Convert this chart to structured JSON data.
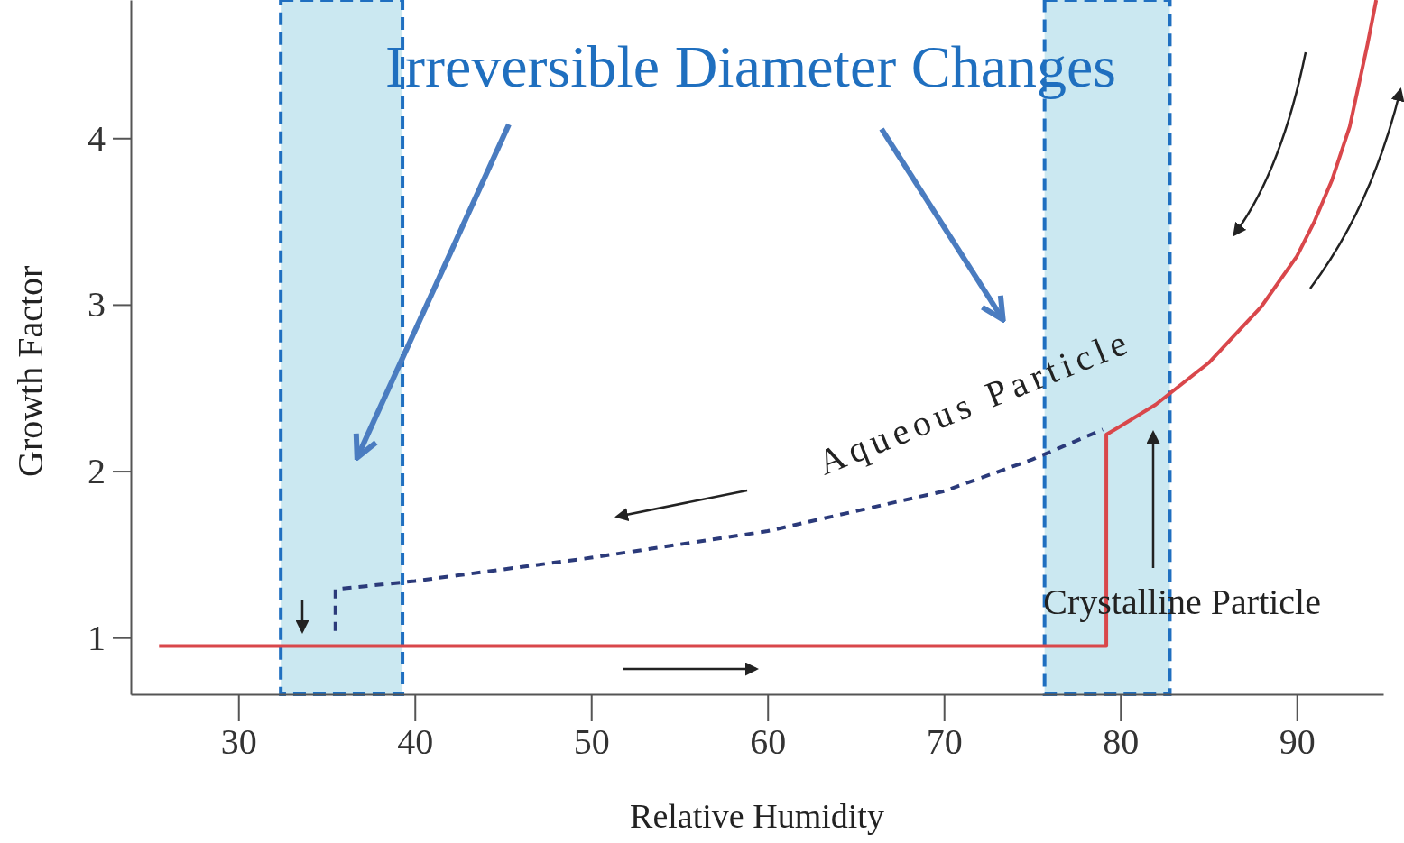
{
  "chart_data": {
    "type": "line",
    "title": "Irreversible Diameter Changes",
    "xlabel": "Relative Humidity",
    "ylabel": "Growth Factor",
    "xlim": [
      23.9,
      94.9
    ],
    "ylim": [
      0.66,
      4.83
    ],
    "xticks": [
      30,
      40,
      50,
      60,
      70,
      80,
      90
    ],
    "yticks": [
      1,
      2,
      3,
      4
    ],
    "grid": false,
    "marker": "none",
    "series": [
      {
        "color": "#d9474b",
        "line_style": "solid",
        "x": [
          25.5,
          79.2,
          79.2,
          80,
          82,
          85,
          88,
          90,
          91,
          92,
          93,
          94,
          94.5
        ],
        "values": [
          0.95,
          0.95,
          2.22,
          2.27,
          2.4,
          2.65,
          2.99,
          3.29,
          3.5,
          3.75,
          4.07,
          4.56,
          4.83
        ]
      },
      {
        "color": "#2b3a7a",
        "line_style": "dashed",
        "x": [
          35.5,
          35.5,
          40,
          50,
          60,
          70,
          75,
          79
        ],
        "values": [
          1.04,
          1.29,
          1.34,
          1.48,
          1.64,
          1.88,
          2.07,
          2.25
        ]
      }
    ],
    "bands": [
      {
        "axis": "x",
        "from": 32.4,
        "to": 39.3,
        "color": "#c5e5f0"
      },
      {
        "axis": "x",
        "from": 75.7,
        "to": 82.8,
        "color": "#c5e5f0"
      }
    ],
    "annotations": [
      "Aqueous Particle",
      "Crystalline Particle"
    ]
  }
}
